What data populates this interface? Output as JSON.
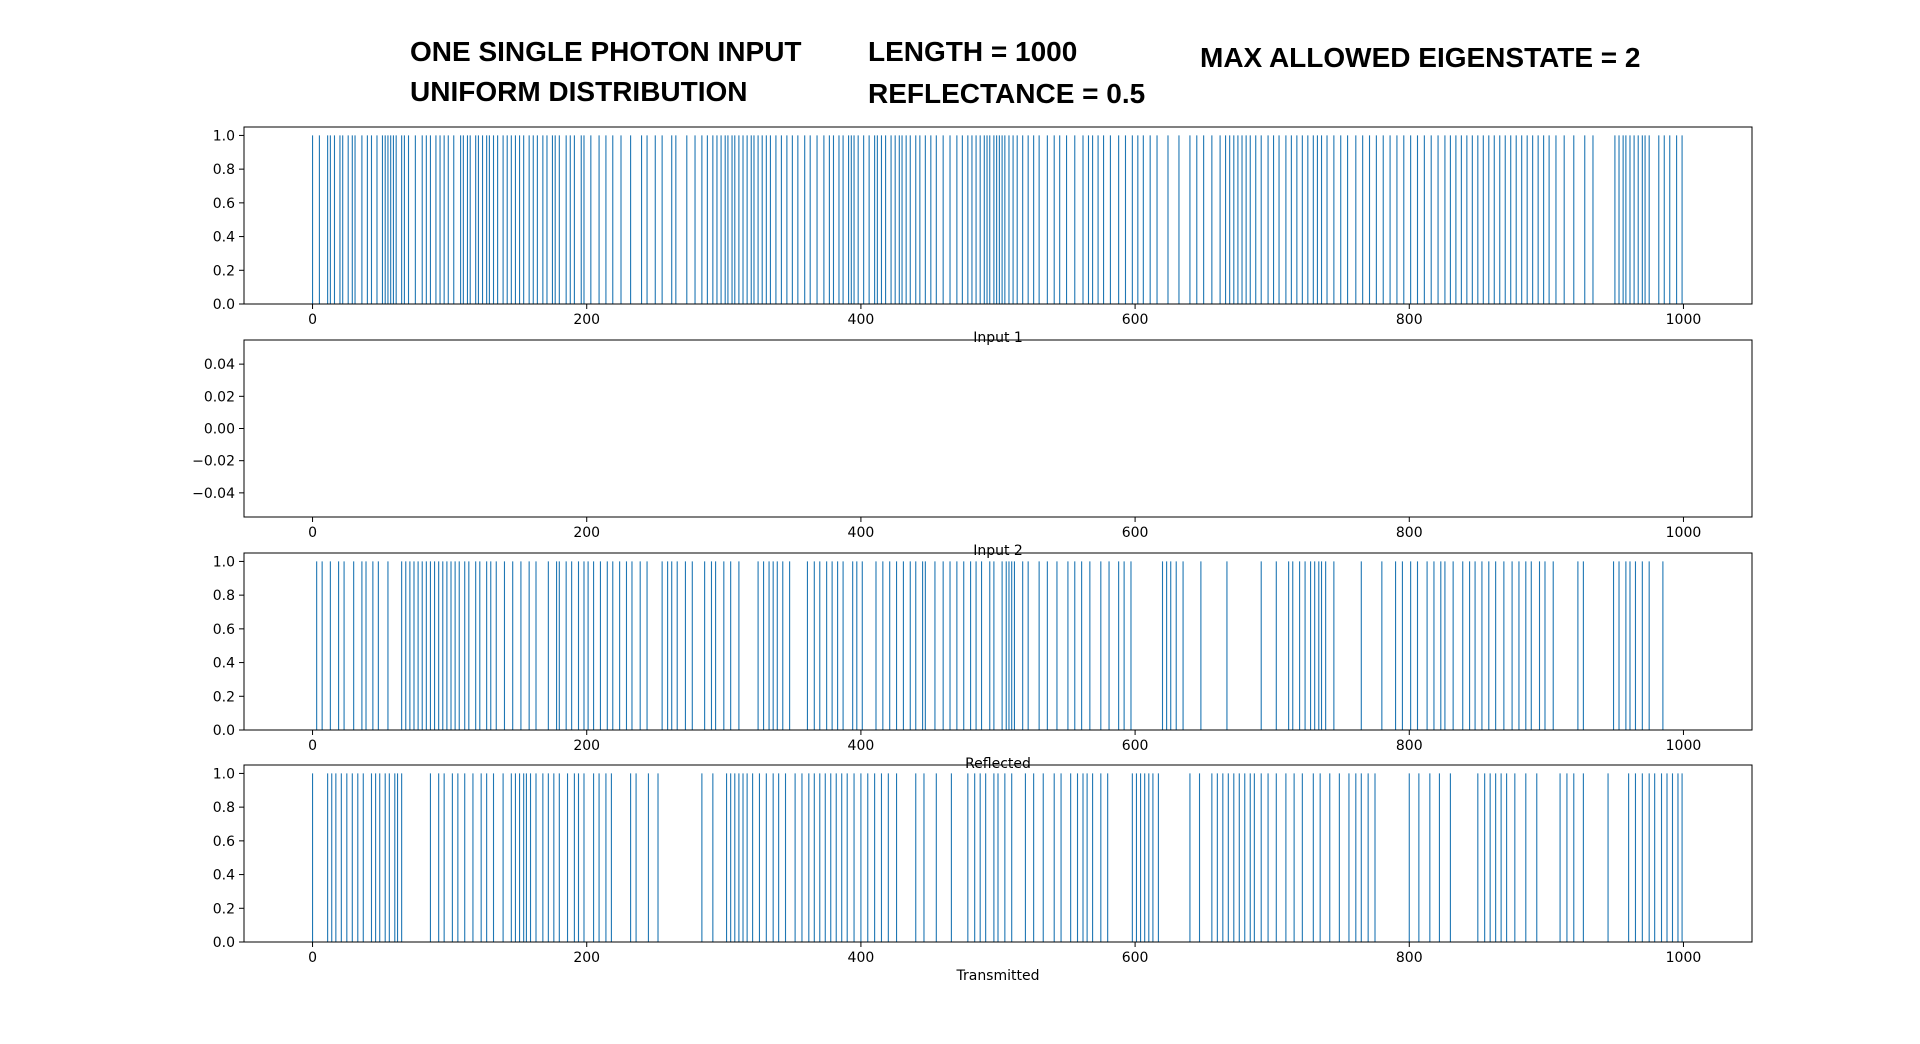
{
  "header": {
    "line1": "ONE SINGLE PHOTON INPUT",
    "line2": "UNIFORM DISTRIBUTION",
    "line3": "LENGTH = 1000",
    "line4": "REFLECTANCE = 0.5",
    "line5": "MAX ALLOWED EIGENSTATE = 2"
  },
  "colors": {
    "bar": "#1f77b4",
    "axis": "#000000"
  },
  "chart_data": [
    {
      "type": "bar",
      "xlabel": "Input 1",
      "xlim": [
        -50,
        1050
      ],
      "ylim": [
        0,
        1.05
      ],
      "xticks": [
        "0",
        "200",
        "400",
        "600",
        "800",
        "1000"
      ],
      "yticks": [
        "0.0",
        "0.2",
        "0.4",
        "0.6",
        "0.8",
        "1.0"
      ],
      "grid": false,
      "events": [
        0,
        5,
        11,
        13,
        16,
        20,
        22,
        26,
        29,
        31,
        36,
        40,
        43,
        47,
        51,
        53,
        55,
        57,
        59,
        61,
        65,
        67,
        70,
        75,
        80,
        83,
        86,
        90,
        93,
        96,
        99,
        103,
        108,
        110,
        113,
        115,
        119,
        121,
        124,
        127,
        129,
        132,
        135,
        139,
        142,
        145,
        148,
        151,
        154,
        158,
        161,
        164,
        168,
        171,
        175,
        177,
        180,
        185,
        188,
        191,
        196,
        198,
        203,
        209,
        214,
        219,
        225,
        232,
        240,
        244,
        250,
        255,
        262,
        265,
        273,
        279,
        284,
        288,
        292,
        295,
        298,
        301,
        303,
        306,
        308,
        311,
        314,
        317,
        320,
        322,
        325,
        328,
        331,
        334,
        338,
        342,
        346,
        350,
        354,
        359,
        363,
        368,
        373,
        377,
        380,
        384,
        387,
        391,
        393,
        395,
        398,
        402,
        406,
        410,
        412,
        415,
        418,
        422,
        425,
        428,
        430,
        433,
        436,
        440,
        443,
        447,
        451,
        455,
        460,
        465,
        470,
        474,
        478,
        481,
        484,
        487,
        490,
        492,
        494,
        497,
        499,
        501,
        503,
        505,
        508,
        511,
        514,
        518,
        522,
        526,
        530,
        536,
        541,
        545,
        550,
        556,
        562,
        566,
        569,
        573,
        577,
        582,
        588,
        593,
        598,
        602,
        606,
        611,
        616,
        624,
        632,
        640,
        645,
        650,
        656,
        662,
        666,
        669,
        672,
        675,
        678,
        681,
        684,
        688,
        692,
        697,
        701,
        705,
        710,
        714,
        718,
        722,
        726,
        730,
        733,
        736,
        740,
        745,
        750,
        755,
        761,
        766,
        771,
        776,
        781,
        786,
        791,
        796,
        801,
        806,
        811,
        816,
        821,
        826,
        830,
        834,
        838,
        842,
        846,
        850,
        854,
        858,
        862,
        866,
        870,
        874,
        878,
        882,
        886,
        890,
        894,
        898,
        902,
        907,
        913,
        920,
        928,
        934,
        950,
        953,
        956,
        958,
        961,
        964,
        967,
        970,
        972,
        975,
        982,
        986,
        990,
        995,
        999
      ]
    },
    {
      "type": "bar",
      "xlabel": "Input 2",
      "xlim": [
        -50,
        1050
      ],
      "ylim": [
        -0.055,
        0.055
      ],
      "xticks": [
        "0",
        "200",
        "400",
        "600",
        "800",
        "1000"
      ],
      "yticks": [
        "−0.04",
        "−0.02",
        "0.00",
        "0.02",
        "0.04"
      ],
      "grid": false,
      "events": []
    },
    {
      "type": "bar",
      "xlabel": "Reflected",
      "xlim": [
        -50,
        1050
      ],
      "ylim": [
        0,
        1.05
      ],
      "xticks": [
        "0",
        "200",
        "400",
        "600",
        "800",
        "1000"
      ],
      "yticks": [
        "0.0",
        "0.2",
        "0.4",
        "0.6",
        "0.8",
        "1.0"
      ],
      "grid": false,
      "events": [
        3,
        7,
        13,
        19,
        23,
        30,
        36,
        39,
        44,
        48,
        55,
        65,
        68,
        71,
        74,
        77,
        80,
        83,
        86,
        89,
        92,
        95,
        98,
        101,
        104,
        107,
        111,
        114,
        119,
        122,
        127,
        130,
        134,
        140,
        146,
        152,
        158,
        163,
        172,
        178,
        180,
        185,
        189,
        194,
        198,
        201,
        205,
        210,
        215,
        219,
        224,
        229,
        233,
        239,
        244,
        255,
        259,
        262,
        266,
        272,
        277,
        286,
        291,
        294,
        300,
        305,
        311,
        325,
        329,
        333,
        336,
        339,
        343,
        348,
        361,
        366,
        370,
        375,
        379,
        383,
        387,
        394,
        397,
        401,
        411,
        416,
        421,
        426,
        431,
        436,
        440,
        445,
        447,
        454,
        460,
        465,
        470,
        475,
        480,
        484,
        488,
        494,
        497,
        503,
        506,
        508,
        510,
        512,
        518,
        522,
        530,
        536,
        543,
        551,
        556,
        561,
        567,
        575,
        581,
        588,
        592,
        597,
        620,
        623,
        626,
        630,
        635,
        648,
        667,
        692,
        703,
        712,
        715,
        720,
        724,
        728,
        731,
        734,
        736,
        739,
        745,
        765,
        780,
        790,
        795,
        801,
        806,
        813,
        818,
        823,
        826,
        832,
        839,
        844,
        848,
        853,
        858,
        863,
        869,
        875,
        880,
        885,
        889,
        895,
        899,
        905,
        923,
        927,
        949,
        953,
        958,
        961,
        965,
        970,
        975,
        985
      ]
    },
    {
      "type": "bar",
      "xlabel": "Transmitted",
      "xlim": [
        -50,
        1050
      ],
      "ylim": [
        0,
        1.05
      ],
      "xticks": [
        "0",
        "200",
        "400",
        "600",
        "800",
        "1000"
      ],
      "yticks": [
        "0.0",
        "0.2",
        "0.4",
        "0.6",
        "0.8",
        "1.0"
      ],
      "grid": false,
      "events": [
        0,
        11,
        14,
        17,
        21,
        25,
        29,
        33,
        37,
        43,
        46,
        49,
        53,
        56,
        60,
        62,
        65,
        86,
        92,
        96,
        102,
        106,
        111,
        117,
        123,
        127,
        132,
        139,
        145,
        148,
        151,
        154,
        156,
        159,
        163,
        168,
        172,
        176,
        180,
        186,
        191,
        194,
        198,
        205,
        209,
        214,
        218,
        232,
        236,
        245,
        252,
        284,
        292,
        302,
        305,
        308,
        311,
        314,
        317,
        321,
        326,
        331,
        336,
        340,
        345,
        352,
        357,
        362,
        366,
        370,
        374,
        378,
        382,
        386,
        390,
        395,
        400,
        405,
        410,
        415,
        420,
        426,
        440,
        446,
        455,
        466,
        478,
        483,
        487,
        491,
        497,
        500,
        505,
        510,
        520,
        526,
        533,
        541,
        546,
        553,
        558,
        562,
        565,
        569,
        575,
        580,
        598,
        601,
        604,
        607,
        610,
        613,
        617,
        640,
        647,
        656,
        660,
        664,
        668,
        672,
        676,
        680,
        684,
        687,
        692,
        697,
        703,
        710,
        716,
        722,
        730,
        735,
        742,
        749,
        756,
        761,
        765,
        770,
        775,
        800,
        807,
        815,
        822,
        830,
        850,
        855,
        859,
        863,
        867,
        871,
        877,
        885,
        893,
        910,
        915,
        920,
        927,
        945,
        960,
        965,
        970,
        975,
        979,
        984,
        988,
        992,
        996,
        999
      ]
    }
  ]
}
